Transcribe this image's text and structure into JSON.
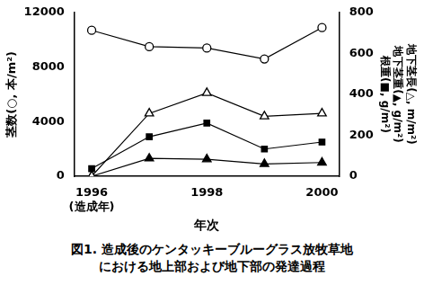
{
  "chart_data": {
    "type": "line",
    "caption": [
      "図1. 造成後のケンタッキーブルーグラス放牧草地",
      "における地上部および地下部の発達過程"
    ],
    "x_label": "年次",
    "y_label": "茎数(○, 本/m²)",
    "y2_label": [
      "地下茎長(△, m/m²)",
      "地下茎重(▲, g/m²)",
      "根重(■, g/m²)"
    ],
    "x": [
      1996,
      1997,
      1998,
      1999,
      2000
    ],
    "xlim": [
      1995.7,
      2000.3
    ],
    "xticks": [
      {
        "value": 1996,
        "label": "1996\n(造成年)"
      },
      1998,
      2000
    ],
    "ylim": [
      0,
      12000
    ],
    "yticks": [
      0,
      4000,
      8000,
      12000
    ],
    "y2lim": [
      0,
      800
    ],
    "y2ticks": [
      0,
      200,
      400,
      600,
      800
    ],
    "grid": false,
    "series": [
      {
        "name": "茎数",
        "color": "#000000",
        "marker": "circle_open",
        "values": [
          10700,
          9500,
          9400,
          8600,
          10900
        ]
      },
      {
        "name": "地下茎長",
        "color": "#000000",
        "marker": "triangle_open",
        "axis": "y2",
        "values": [
          0,
          307,
          407,
          293,
          307
        ]
      },
      {
        "name": "地下茎重",
        "color": "#000000",
        "marker": "triangle",
        "axis": "y2",
        "values": [
          0,
          87,
          83,
          60,
          67
        ]
      },
      {
        "name": "根重",
        "color": "#000000",
        "marker": "square",
        "axis": "y2",
        "values": [
          37,
          193,
          260,
          133,
          167
        ]
      }
    ]
  }
}
